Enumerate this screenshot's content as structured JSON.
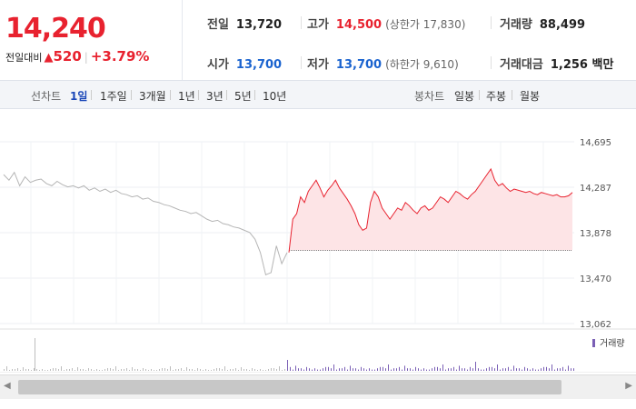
{
  "price": {
    "current": "14,240",
    "change_label": "전일대비",
    "change_amount": "520",
    "change_percent": "+3.79%"
  },
  "stats": {
    "prev_close": {
      "label": "전일",
      "value": "13,720"
    },
    "high": {
      "label": "고가",
      "value": "14,500",
      "sub": "(상한가 17,830)"
    },
    "volume": {
      "label": "거래량",
      "value": "88,499"
    },
    "open": {
      "label": "시가",
      "value": "13,700"
    },
    "low": {
      "label": "저가",
      "value": "13,700",
      "sub": "(하한가 9,610)"
    },
    "trade_value": {
      "label": "거래대금",
      "value": "1,256 백만"
    }
  },
  "tabs": {
    "line_label": "선차트",
    "line_items": [
      "1일",
      "1주일",
      "3개월",
      "1년",
      "3년",
      "5년",
      "10년"
    ],
    "candle_label": "봉차트",
    "candle_items": [
      "일봉",
      "주봉",
      "월봉"
    ]
  },
  "chart_data": {
    "type": "line",
    "y_ticks": [
      "14,695",
      "14,287",
      "13,878",
      "13,470",
      "13,062"
    ],
    "ylim": [
      13062,
      14695
    ],
    "baseline": 13720,
    "prev_day": [
      14400,
      14350,
      14420,
      14300,
      14380,
      14330,
      14350,
      14360,
      14320,
      14300,
      14340,
      14310,
      14290,
      14300,
      14280,
      14300,
      14260,
      14280,
      14250,
      14270,
      14240,
      14260,
      14230,
      14220,
      14200,
      14210,
      14180,
      14190,
      14160,
      14150,
      14130,
      14120,
      14100,
      14080,
      14070,
      14050,
      14060,
      14030,
      14000,
      13980,
      13990,
      13960,
      13950,
      13930,
      13920,
      13900,
      13880,
      13820,
      13700,
      13500,
      13520,
      13760,
      13600,
      13700
    ],
    "today": [
      13700,
      14000,
      14050,
      14200,
      14150,
      14250,
      14300,
      14350,
      14280,
      14200,
      14260,
      14300,
      14350,
      14280,
      14230,
      14180,
      14120,
      14050,
      13950,
      13900,
      13920,
      14150,
      14250,
      14200,
      14100,
      14050,
      14000,
      14050,
      14100,
      14080,
      14150,
      14120,
      14080,
      14050,
      14100,
      14120,
      14080,
      14100,
      14150,
      14200,
      14180,
      14150,
      14200,
      14250,
      14230,
      14200,
      14180,
      14220,
      14250,
      14300,
      14350,
      14400,
      14450,
      14350,
      14300,
      14320,
      14280,
      14250,
      14270,
      14260,
      14250,
      14240,
      14250,
      14230,
      14220,
      14240,
      14230,
      14220,
      14210,
      14220,
      14200,
      14200,
      14210,
      14240
    ],
    "legend": "거래량"
  }
}
